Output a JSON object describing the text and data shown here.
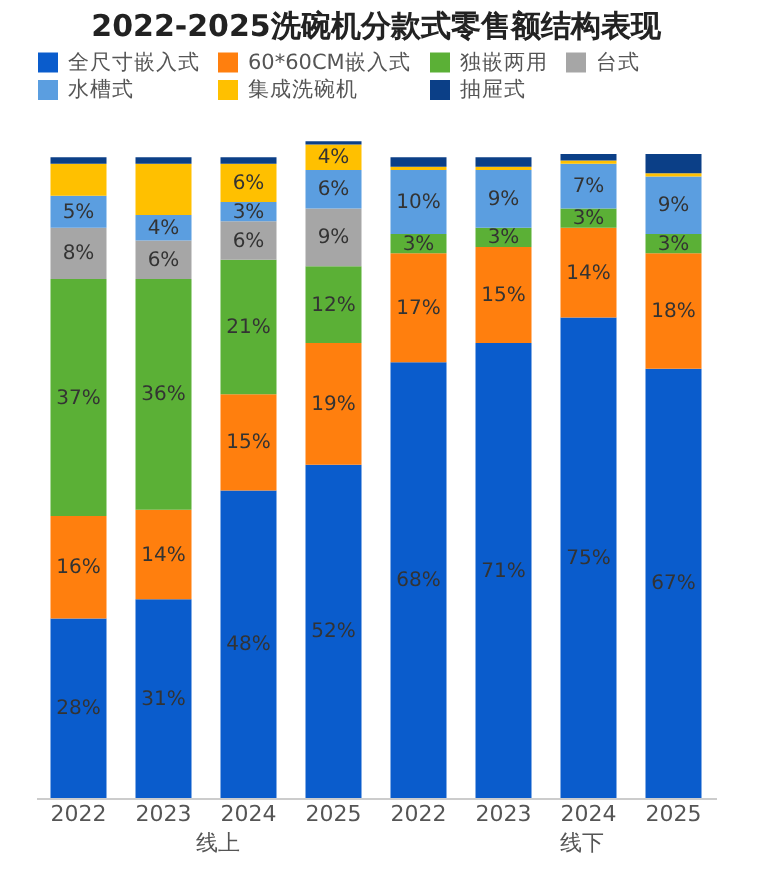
{
  "chart_data": {
    "type": "bar",
    "title": "2022-2025洗碗机分款式零售额结构表现",
    "categories": [
      "2022",
      "2023",
      "2024",
      "2025",
      "2022",
      "2023",
      "2024",
      "2025"
    ],
    "stacked": true,
    "ylim": [
      0,
      103
    ],
    "tick_labels": "x",
    "legend": "top",
    "annotations": [
      "线上",
      "线下"
    ],
    "series": [
      {
        "name": "全尺寸嵌入式",
        "color": "#0a5ccc",
        "values": [
          28,
          31,
          48,
          52,
          68,
          71,
          75,
          67
        ],
        "value_labels": [
          "28%",
          "31%",
          "48%",
          "52%",
          "68%",
          "71%",
          "75%",
          "67%"
        ]
      },
      {
        "name": "60*60CM嵌入式",
        "color": "#ff7f0e",
        "values": [
          16,
          14,
          15,
          19,
          17,
          15,
          14,
          18
        ],
        "value_labels": [
          "16%",
          "14%",
          "15%",
          "19%",
          "17%",
          "15%",
          "14%",
          "18%"
        ]
      },
      {
        "name": "独嵌两用",
        "color": "#5bb036",
        "values": [
          37,
          36,
          21,
          12,
          3,
          3,
          3,
          3
        ],
        "value_labels": [
          "37%",
          "36%",
          "21%",
          "12%",
          "3%",
          "3%",
          "3%",
          "3%"
        ]
      },
      {
        "name": "台式",
        "color": "#a6a6a6",
        "values": [
          8,
          6,
          6,
          9,
          null,
          null,
          null,
          null
        ],
        "value_labels": [
          "8%",
          "6%",
          "6%",
          "9%",
          null,
          null,
          null,
          null
        ]
      },
      {
        "name": "水槽式",
        "color": "#5b9ee0",
        "values": [
          5,
          4,
          3,
          6,
          10,
          9,
          7,
          9
        ],
        "value_labels": [
          "5%",
          "4%",
          "3%",
          "6%",
          "10%",
          "9%",
          "7%",
          "9%"
        ]
      },
      {
        "name": "集成洗碗机",
        "color": "#ffc000",
        "values": [
          5,
          8,
          6,
          4,
          0.5,
          0.5,
          0.5,
          0.5
        ],
        "value_labels": [
          null,
          null,
          "6%",
          "4%",
          null,
          null,
          null,
          null
        ]
      },
      {
        "name": "抽屉式",
        "color": "#0b3f87",
        "values": [
          1,
          1,
          1,
          0.5,
          1.5,
          1.5,
          1,
          3
        ],
        "value_labels": [
          null,
          null,
          null,
          null,
          null,
          null,
          null,
          null
        ]
      }
    ]
  }
}
